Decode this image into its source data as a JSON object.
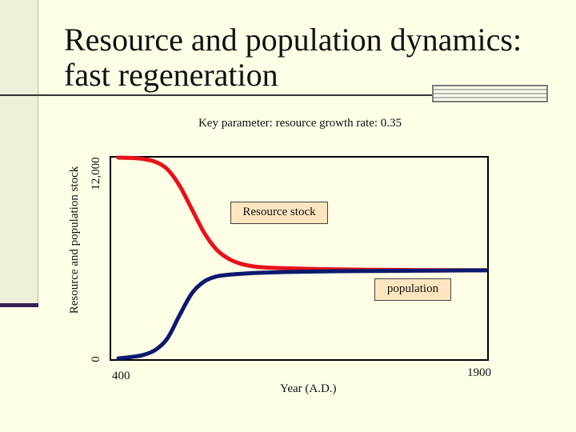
{
  "slide": {
    "title_line1": "Resource and population dynamics:",
    "title_line2": "fast regeneration",
    "theme_colors": {
      "background": "#fefde6",
      "sidebar": "#f0efd9",
      "accent": "#3a1e56"
    }
  },
  "chart_data": {
    "type": "line",
    "title": "Key parameter: resource growth rate: 0.35",
    "xlabel": "Year (A.D.)",
    "ylabel": "Resource and population stock",
    "xlim": [
      400,
      1900
    ],
    "ylim": [
      0,
      12000
    ],
    "x_tick_labels": [
      "400",
      "1900"
    ],
    "y_tick_labels": [
      "0",
      "12,000"
    ],
    "grid": false,
    "series": [
      {
        "name": "Resource stock",
        "color": "#e8111b",
        "x": [
          400,
          450,
          500,
          550,
          600,
          650,
          700,
          750,
          800,
          850,
          900,
          950,
          1000,
          1100,
          1200,
          1300,
          1400,
          1500,
          1600,
          1700,
          1800,
          1900
        ],
        "y": [
          12000,
          11980,
          11920,
          11750,
          11300,
          10300,
          8900,
          7500,
          6500,
          5950,
          5650,
          5500,
          5430,
          5380,
          5340,
          5320,
          5300,
          5290,
          5280,
          5270,
          5270,
          5265
        ]
      },
      {
        "name": "population",
        "color": "#0b1a6e",
        "x": [
          400,
          450,
          500,
          550,
          600,
          650,
          700,
          750,
          800,
          850,
          900,
          950,
          1000,
          1100,
          1200,
          1300,
          1400,
          1500,
          1600,
          1700,
          1800,
          1900
        ],
        "y": [
          0,
          80,
          200,
          500,
          1200,
          2600,
          3900,
          4600,
          4900,
          5000,
          5060,
          5100,
          5130,
          5170,
          5190,
          5210,
          5220,
          5230,
          5240,
          5250,
          5260,
          5265
        ]
      }
    ]
  }
}
